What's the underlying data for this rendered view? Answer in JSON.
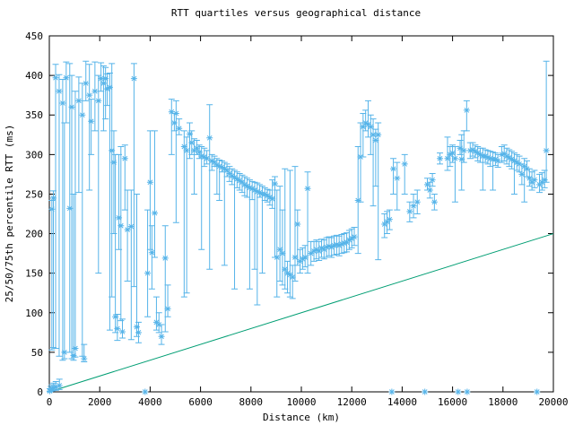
{
  "window": {
    "background": "#ffffff"
  },
  "chart_data": {
    "type": "scatter",
    "title": "RTT quartiles versus geographical distance",
    "xlabel": "Distance (km)",
    "ylabel": "25/50/75th percentile RTT (ms)",
    "xlim": [
      0,
      20000
    ],
    "ylim": [
      0,
      450
    ],
    "xticks": [
      0,
      2000,
      4000,
      6000,
      8000,
      10000,
      12000,
      14000,
      16000,
      18000,
      20000
    ],
    "yticks": [
      0,
      50,
      100,
      150,
      200,
      250,
      300,
      350,
      400,
      450
    ],
    "grid": false,
    "legend_position": "none",
    "marker_style": "asterisk",
    "colors": {
      "quartiles": "#56b4e9",
      "reference_line": "#009e73",
      "axis": "#000000",
      "text": "#000000"
    },
    "series": [
      {
        "name": "RTT 25/50/75th percentile error bars",
        "type": "errorbar-scatter",
        "color": "#56b4e9",
        "points_format": [
          "distance_km",
          "q25_ms",
          "median_ms",
          "q75_ms"
        ],
        "points": [
          [
            20,
            0,
            1,
            4
          ],
          [
            60,
            1,
            3,
            7
          ],
          [
            110,
            1,
            4,
            9
          ],
          [
            170,
            2,
            5,
            11
          ],
          [
            260,
            2,
            6,
            13
          ],
          [
            400,
            3,
            8,
            16
          ],
          [
            100,
            53,
            231,
            242
          ],
          [
            160,
            56,
            245,
            254
          ],
          [
            250,
            55,
            397,
            414
          ],
          [
            390,
            45,
            380,
            401
          ],
          [
            530,
            40,
            365,
            395
          ],
          [
            600,
            42,
            50,
            340
          ],
          [
            670,
            340,
            397,
            417
          ],
          [
            810,
            50,
            232,
            415
          ],
          [
            890,
            42,
            360,
            400
          ],
          [
            960,
            40,
            46,
            250
          ],
          [
            1030,
            44,
            55,
            380
          ],
          [
            1170,
            252,
            368,
            398
          ],
          [
            1310,
            45,
            350,
            390
          ],
          [
            1380,
            38,
            42,
            60
          ],
          [
            1450,
            368,
            390,
            418
          ],
          [
            1590,
            255,
            375,
            414
          ],
          [
            1660,
            300,
            342,
            370
          ],
          [
            1810,
            330,
            380,
            417
          ],
          [
            1950,
            150,
            368,
            400
          ],
          [
            2050,
            380,
            396,
            416
          ],
          [
            2150,
            330,
            390,
            412
          ],
          [
            2230,
            345,
            396,
            410
          ],
          [
            2300,
            362,
            383,
            402
          ],
          [
            2400,
            78,
            385,
            403
          ],
          [
            2480,
            120,
            305,
            415
          ],
          [
            2560,
            200,
            290,
            330
          ],
          [
            2620,
            75,
            95,
            300
          ],
          [
            2700,
            65,
            80,
            98
          ],
          [
            2760,
            180,
            220,
            300
          ],
          [
            2840,
            90,
            210,
            310
          ],
          [
            2900,
            68,
            76,
            92
          ],
          [
            3000,
            230,
            295,
            312
          ],
          [
            3100,
            140,
            205,
            255
          ],
          [
            3250,
            66,
            209,
            255
          ],
          [
            3360,
            133,
            396,
            415
          ],
          [
            3470,
            70,
            82,
            250
          ],
          [
            3540,
            62,
            75,
            88
          ],
          [
            3800,
            0,
            0,
            0
          ],
          [
            3900,
            95,
            150,
            230
          ],
          [
            4000,
            180,
            265,
            330
          ],
          [
            4070,
            130,
            176,
            210
          ],
          [
            4180,
            170,
            226,
            330
          ],
          [
            4250,
            78,
            88,
            120
          ],
          [
            4350,
            75,
            85,
            100
          ],
          [
            4450,
            60,
            70,
            85
          ],
          [
            4600,
            76,
            169,
            210
          ],
          [
            4700,
            95,
            105,
            135
          ],
          [
            4850,
            300,
            354,
            370
          ],
          [
            4960,
            330,
            340,
            352
          ],
          [
            5030,
            214,
            352,
            368
          ],
          [
            5150,
            325,
            333,
            345
          ],
          [
            5350,
            120,
            310,
            330
          ],
          [
            5450,
            125,
            305,
            322
          ],
          [
            5570,
            295,
            326,
            340
          ],
          [
            5650,
            300,
            315,
            330
          ],
          [
            5750,
            250,
            305,
            320
          ],
          [
            5850,
            300,
            308,
            318
          ],
          [
            5950,
            295,
            303,
            312
          ],
          [
            6040,
            180,
            298,
            310
          ],
          [
            6150,
            285,
            297,
            308
          ],
          [
            6250,
            288,
            295,
            305
          ],
          [
            6360,
            155,
            321,
            363
          ],
          [
            6450,
            280,
            292,
            300
          ],
          [
            6550,
            285,
            290,
            298
          ],
          [
            6650,
            250,
            287,
            295
          ],
          [
            6750,
            242,
            285,
            293
          ],
          [
            6850,
            278,
            284,
            292
          ],
          [
            6950,
            160,
            282,
            290
          ],
          [
            7050,
            272,
            280,
            288
          ],
          [
            7150,
            266,
            276,
            285
          ],
          [
            7250,
            262,
            273,
            282
          ],
          [
            7350,
            130,
            271,
            280
          ],
          [
            7450,
            258,
            269,
            278
          ],
          [
            7550,
            255,
            267,
            276
          ],
          [
            7650,
            252,
            265,
            274
          ],
          [
            7750,
            248,
            262,
            272
          ],
          [
            7850,
            246,
            260,
            270
          ],
          [
            7950,
            130,
            258,
            268
          ],
          [
            8050,
            243,
            257,
            266
          ],
          [
            8150,
            155,
            255,
            265
          ],
          [
            8250,
            110,
            253,
            264
          ],
          [
            8350,
            246,
            252,
            262
          ],
          [
            8450,
            150,
            250,
            260
          ],
          [
            8550,
            242,
            250,
            258
          ],
          [
            8650,
            240,
            248,
            256
          ],
          [
            8750,
            236,
            246,
            255
          ],
          [
            8850,
            232,
            244,
            268
          ],
          [
            8950,
            170,
            263,
            272
          ],
          [
            9030,
            120,
            170,
            255
          ],
          [
            9150,
            140,
            180,
            260
          ],
          [
            9250,
            135,
            175,
            230
          ],
          [
            9350,
            130,
            155,
            282
          ],
          [
            9450,
            125,
            150,
            165
          ],
          [
            9550,
            120,
            148,
            280
          ],
          [
            9650,
            118,
            145,
            160
          ],
          [
            9750,
            140,
            170,
            285
          ],
          [
            9850,
            160,
            212,
            230
          ],
          [
            9950,
            150,
            165,
            180
          ],
          [
            10050,
            155,
            168,
            182
          ],
          [
            10150,
            158,
            170,
            185
          ],
          [
            10250,
            150,
            257,
            278
          ],
          [
            10380,
            160,
            175,
            190
          ],
          [
            10500,
            165,
            178,
            190
          ],
          [
            10600,
            168,
            180,
            192
          ],
          [
            10700,
            166,
            178,
            190
          ],
          [
            10800,
            170,
            182,
            193
          ],
          [
            10900,
            168,
            180,
            192
          ],
          [
            11000,
            170,
            183,
            195
          ],
          [
            11100,
            172,
            184,
            196
          ],
          [
            11200,
            170,
            183,
            195
          ],
          [
            11300,
            173,
            185,
            197
          ],
          [
            11400,
            174,
            186,
            198
          ],
          [
            11500,
            172,
            185,
            197
          ],
          [
            11600,
            175,
            187,
            199
          ],
          [
            11700,
            176,
            188,
            200
          ],
          [
            11800,
            177,
            189,
            201
          ],
          [
            11900,
            180,
            192,
            204
          ],
          [
            12000,
            182,
            194,
            206
          ],
          [
            12100,
            185,
            196,
            208
          ],
          [
            12250,
            175,
            242,
            310
          ],
          [
            12350,
            240,
            297,
            340
          ],
          [
            12450,
            297,
            335,
            352
          ],
          [
            12550,
            330,
            340,
            356
          ],
          [
            12650,
            322,
            338,
            368
          ],
          [
            12750,
            300,
            335,
            350
          ],
          [
            12850,
            235,
            325,
            345
          ],
          [
            12950,
            260,
            318,
            332
          ],
          [
            13050,
            167,
            325,
            340
          ],
          [
            13300,
            195,
            212,
            225
          ],
          [
            13400,
            200,
            215,
            228
          ],
          [
            13500,
            205,
            218,
            230
          ],
          [
            13590,
            0,
            0,
            0
          ],
          [
            13650,
            250,
            282,
            295
          ],
          [
            13800,
            230,
            270,
            290
          ],
          [
            14100,
            250,
            288,
            300
          ],
          [
            14300,
            215,
            228,
            240
          ],
          [
            14450,
            220,
            235,
            250
          ],
          [
            14600,
            225,
            240,
            255
          ],
          [
            14900,
            0,
            0,
            0
          ],
          [
            15000,
            255,
            262,
            270
          ],
          [
            15100,
            245,
            255,
            265
          ],
          [
            15200,
            260,
            268,
            276
          ],
          [
            15280,
            230,
            240,
            250
          ],
          [
            15500,
            288,
            295,
            302
          ],
          [
            15800,
            280,
            295,
            322
          ],
          [
            15900,
            285,
            300,
            310
          ],
          [
            16000,
            290,
            302,
            312
          ],
          [
            16100,
            240,
            295,
            310
          ],
          [
            16220,
            0,
            0,
            0
          ],
          [
            16300,
            300,
            308,
            318
          ],
          [
            16360,
            255,
            294,
            325
          ],
          [
            16450,
            290,
            305,
            330
          ],
          [
            16560,
            330,
            356,
            368
          ],
          [
            16580,
            0,
            0,
            0
          ],
          [
            16700,
            295,
            305,
            315
          ],
          [
            16800,
            298,
            306,
            315
          ],
          [
            16900,
            296,
            304,
            312
          ],
          [
            17000,
            292,
            302,
            310
          ],
          [
            17100,
            290,
            300,
            308
          ],
          [
            17200,
            255,
            298,
            308
          ],
          [
            17300,
            290,
            298,
            306
          ],
          [
            17400,
            288,
            296,
            305
          ],
          [
            17500,
            285,
            295,
            304
          ],
          [
            17600,
            255,
            294,
            303
          ],
          [
            17700,
            286,
            294,
            302
          ],
          [
            17800,
            284,
            292,
            300
          ],
          [
            17950,
            290,
            300,
            310
          ],
          [
            18050,
            292,
            301,
            312
          ],
          [
            18150,
            288,
            298,
            308
          ],
          [
            18250,
            285,
            296,
            306
          ],
          [
            18350,
            282,
            294,
            304
          ],
          [
            18450,
            250,
            292,
            302
          ],
          [
            18550,
            280,
            290,
            300
          ],
          [
            18650,
            278,
            288,
            298
          ],
          [
            18750,
            262,
            275,
            288
          ],
          [
            18850,
            240,
            285,
            295
          ],
          [
            18950,
            272,
            282,
            292
          ],
          [
            19050,
            260,
            270,
            282
          ],
          [
            19150,
            255,
            265,
            278
          ],
          [
            19250,
            258,
            268,
            280
          ],
          [
            19350,
            0,
            0,
            0
          ],
          [
            19450,
            252,
            262,
            275
          ],
          [
            19550,
            255,
            265,
            277
          ],
          [
            19650,
            258,
            268,
            280
          ],
          [
            19720,
            265,
            305,
            418
          ]
        ]
      },
      {
        "name": "reference line (minimum RTT vs distance)",
        "type": "line",
        "color": "#009e73",
        "points": [
          [
            0,
            0
          ],
          [
            20000,
            200
          ]
        ]
      }
    ]
  }
}
